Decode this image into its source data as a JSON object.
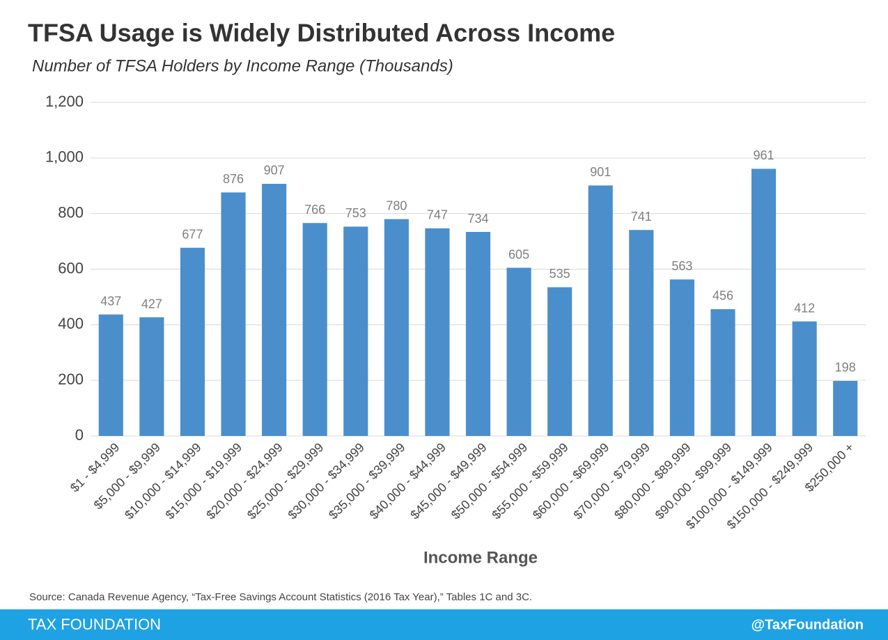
{
  "chart_data": {
    "type": "bar",
    "title": "TFSA Usage is Widely Distributed Across Income",
    "subtitle": "Number of TFSA Holders by Income Range (Thousands)",
    "x_label": "Income Range",
    "categories": [
      "$1 - $4,999",
      "$5,000 - $9,999",
      "$10,000 - $14,999",
      "$15,000 - $19,999",
      "$20,000 - $24,999",
      "$25,000 - $29,999",
      "$30,000 - $34,999",
      "$35,000 - $39,999",
      "$40,000 - $44,999",
      "$45,000 - $49,999",
      "$50,000 - $54,999",
      "$55,000 - $59,999",
      "$60,000 - $69,999",
      "$70,000 - $79,999",
      "$80,000 - $89,999",
      "$90,000 - $99,999",
      "$100,000 - $149,999",
      "$150,000 - $249,999",
      "$250,000 +"
    ],
    "values": [
      437,
      427,
      677,
      876,
      907,
      766,
      753,
      780,
      747,
      734,
      605,
      535,
      901,
      741,
      563,
      456,
      961,
      412,
      198
    ],
    "color": "#4a8fcc",
    "ylim": [
      0,
      1200
    ],
    "yticks": [
      0,
      200,
      400,
      600,
      800,
      {
        "value": 1000,
        "label": "1,000"
      },
      {
        "value": 1200,
        "label": "1,200"
      }
    ],
    "grid": true,
    "source": "Source: Canada Revenue Agency, “Tax-Free Savings Account Statistics (2016 Tax Year),” Tables 1C and 3C."
  },
  "footer": {
    "left": "TAX FOUNDATION",
    "right": "@TaxFoundation"
  }
}
